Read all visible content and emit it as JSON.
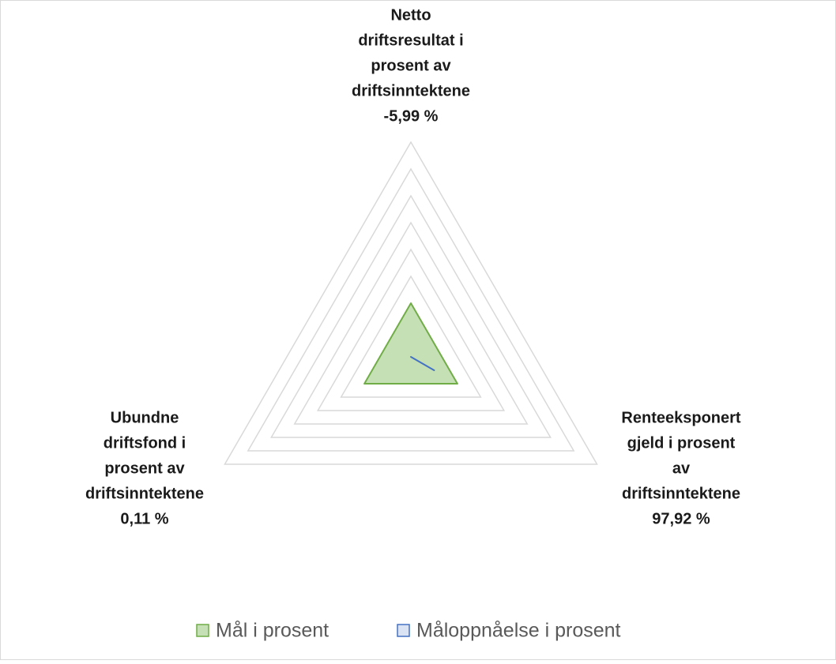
{
  "chart_data": {
    "type": "radar",
    "categories": [
      [
        "Netto",
        "driftsresultat i",
        "prosent av",
        "driftsinntektene",
        "-5,99 %"
      ],
      [
        "Renteeksponert",
        "gjeld i prosent",
        "av",
        "driftsinntektene",
        "97,92 %"
      ],
      [
        "Ubundne",
        "driftsfond i",
        "prosent av",
        "driftsinntektene",
        "0,11 %"
      ]
    ],
    "series": [
      {
        "name": "Mål i prosent",
        "color": "#70ad47",
        "fill": "#c5e0b4",
        "values": [
          2,
          2,
          2
        ]
      },
      {
        "name": "Måloppnåelse i prosent",
        "color": "#4472c4",
        "fill": "#dae3f3",
        "values": [
          0,
          1,
          0
        ]
      }
    ],
    "ylim": [
      0,
      8
    ],
    "yticks": [
      1,
      2,
      3,
      4,
      5,
      6,
      7,
      8
    ],
    "grid": true,
    "legend": "bottom"
  }
}
